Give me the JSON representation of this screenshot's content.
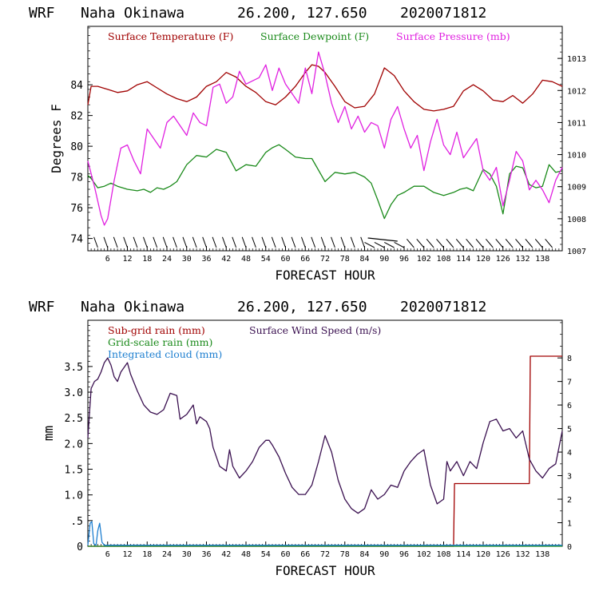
{
  "chart_data": [
    {
      "type": "line",
      "header": {
        "model": "WRF",
        "location": "Naha Okinawa",
        "coords": "26.200, 127.650",
        "init": "2020071812"
      },
      "xlabel": "FORECAST HOUR",
      "ylabel": "Degrees F",
      "x_ticks": [
        "6",
        "12",
        "18",
        "24",
        "30",
        "36",
        "42",
        "48",
        "54",
        "60",
        "66",
        "72",
        "78",
        "84",
        "90",
        "96",
        "102",
        "108",
        "114",
        "120",
        "126",
        "132",
        "138"
      ],
      "xlim": [
        0,
        144
      ],
      "ylim_left": [
        73.2,
        87.8
      ],
      "left_ticks": [
        "74",
        "76",
        "78",
        "80",
        "82",
        "84"
      ],
      "left_tick_values": [
        74,
        76,
        78,
        80,
        82,
        84
      ],
      "ylim_right": [
        1007,
        1014
      ],
      "right_ticks": [
        "1007",
        "1008",
        "1009",
        "1010",
        "1011",
        "1012",
        "1013"
      ],
      "right_tick_values": [
        1007,
        1008,
        1009,
        1010,
        1011,
        1012,
        1013
      ],
      "wind_barbs": true,
      "series": [
        {
          "name": "Surface Temperature (F)",
          "axis": "left",
          "color": "#a00000",
          "x": [
            0,
            1,
            3,
            6,
            9,
            12,
            15,
            18,
            21,
            24,
            27,
            30,
            33,
            36,
            39,
            42,
            45,
            48,
            51,
            54,
            57,
            60,
            63,
            66,
            68,
            70,
            72,
            75,
            78,
            81,
            84,
            87,
            90,
            93,
            96,
            99,
            102,
            105,
            108,
            111,
            114,
            117,
            120,
            123,
            126,
            129,
            132,
            135,
            138,
            141,
            144
          ],
          "values": [
            82.7,
            83.9,
            83.9,
            83.7,
            83.5,
            83.6,
            84.0,
            84.2,
            83.8,
            83.4,
            83.1,
            82.9,
            83.2,
            83.9,
            84.2,
            84.8,
            84.5,
            83.9,
            83.5,
            82.9,
            82.7,
            83.2,
            83.9,
            84.8,
            85.3,
            85.2,
            84.8,
            83.9,
            82.9,
            82.5,
            82.6,
            83.4,
            85.1,
            84.6,
            83.6,
            82.9,
            82.4,
            82.3,
            82.4,
            82.6,
            83.6,
            84.0,
            83.6,
            83.0,
            82.9,
            83.3,
            82.8,
            83.4,
            84.3,
            84.2,
            83.9
          ]
        },
        {
          "name": "Surface Dewpoint (F)",
          "axis": "left",
          "color": "#1a8a1a",
          "x": [
            0,
            1,
            3,
            5,
            7,
            9,
            12,
            15,
            17,
            19,
            21,
            23,
            25,
            27,
            30,
            33,
            36,
            39,
            42,
            45,
            48,
            51,
            54,
            56,
            58,
            60,
            63,
            66,
            68,
            72,
            75,
            78,
            81,
            84,
            86,
            88,
            90,
            92,
            94,
            96,
            99,
            102,
            105,
            108,
            111,
            113,
            115,
            117,
            120,
            122,
            124,
            126,
            128,
            130,
            132,
            134,
            136,
            138,
            140,
            142,
            144
          ],
          "values": [
            78.1,
            77.9,
            77.3,
            77.4,
            77.6,
            77.4,
            77.2,
            77.1,
            77.2,
            77.0,
            77.3,
            77.2,
            77.4,
            77.7,
            78.8,
            79.4,
            79.3,
            79.8,
            79.6,
            78.4,
            78.8,
            78.7,
            79.6,
            79.9,
            80.1,
            79.8,
            79.3,
            79.2,
            79.2,
            77.7,
            78.3,
            78.2,
            78.3,
            78.0,
            77.6,
            76.5,
            75.3,
            76.2,
            76.8,
            77.0,
            77.4,
            77.4,
            77.0,
            76.8,
            77.0,
            77.2,
            77.3,
            77.1,
            78.5,
            78.2,
            77.4,
            75.6,
            78.2,
            78.7,
            78.6,
            77.5,
            77.3,
            77.4,
            78.8,
            78.3,
            78.4
          ]
        },
        {
          "name": "Surface Pressure (mb)",
          "axis": "right",
          "color": "#e020e0",
          "x": [
            0,
            2,
            4,
            5,
            6,
            8,
            10,
            12,
            14,
            16,
            18,
            20,
            22,
            24,
            26,
            28,
            30,
            32,
            34,
            36,
            38,
            40,
            42,
            44,
            46,
            48,
            50,
            52,
            54,
            56,
            58,
            60,
            62,
            64,
            66,
            68,
            70,
            72,
            74,
            76,
            78,
            80,
            82,
            84,
            86,
            88,
            90,
            92,
            94,
            96,
            98,
            100,
            102,
            104,
            106,
            108,
            110,
            112,
            114,
            116,
            118,
            120,
            122,
            124,
            126,
            128,
            130,
            132,
            134,
            136,
            138,
            140,
            142,
            144
          ],
          "values": [
            1009.8,
            1009.0,
            1008.1,
            1007.8,
            1008.0,
            1009.2,
            1010.2,
            1010.3,
            1009.8,
            1009.4,
            1010.8,
            1010.5,
            1010.2,
            1011.0,
            1011.2,
            1010.9,
            1010.6,
            1011.3,
            1011.0,
            1010.9,
            1012.1,
            1012.2,
            1011.6,
            1011.8,
            1012.6,
            1012.2,
            1012.3,
            1012.4,
            1012.8,
            1012.0,
            1012.7,
            1012.2,
            1011.9,
            1011.6,
            1012.7,
            1011.9,
            1013.2,
            1012.5,
            1011.6,
            1011.0,
            1011.5,
            1010.8,
            1011.2,
            1010.7,
            1011.0,
            1010.9,
            1010.2,
            1011.1,
            1011.5,
            1010.8,
            1010.2,
            1010.6,
            1009.5,
            1010.4,
            1011.1,
            1010.3,
            1010.0,
            1010.7,
            1009.9,
            1010.2,
            1010.5,
            1009.5,
            1009.2,
            1009.6,
            1008.4,
            1009.2,
            1010.1,
            1009.8,
            1008.9,
            1009.2,
            1008.9,
            1008.5,
            1009.2,
            1009.6
          ]
        }
      ]
    },
    {
      "type": "line",
      "header": {
        "model": "WRF",
        "location": "Naha Okinawa",
        "coords": "26.200, 127.650",
        "init": "2020071812"
      },
      "xlabel": "FORECAST HOUR",
      "ylabel": "mm",
      "x_ticks": [
        "6",
        "12",
        "18",
        "24",
        "30",
        "36",
        "42",
        "48",
        "54",
        "60",
        "66",
        "72",
        "78",
        "84",
        "90",
        "96",
        "102",
        "108",
        "114",
        "120",
        "126",
        "132",
        "138"
      ],
      "xlim": [
        0,
        144
      ],
      "ylim_left": [
        0,
        4.4
      ],
      "left_ticks": [
        "0",
        ".5",
        "1.0",
        "1.5",
        "2.0",
        "2.5",
        "3.0",
        "3.5"
      ],
      "left_tick_values": [
        0,
        0.5,
        1.0,
        1.5,
        2.0,
        2.5,
        3.0,
        3.5
      ],
      "ylim_right": [
        0,
        9.6
      ],
      "right_ticks": [
        "0",
        "1",
        "2",
        "3",
        "4",
        "5",
        "6",
        "7",
        "8"
      ],
      "right_tick_values": [
        0,
        1,
        2,
        3,
        4,
        5,
        6,
        7,
        8
      ],
      "series": [
        {
          "name": "Sub-grid rain (mm)",
          "axis": "left",
          "color": "#a00000",
          "step": true,
          "x": [
            0,
            111,
            111.3,
            134,
            134.3,
            144
          ],
          "values": [
            0,
            0,
            1.22,
            1.22,
            3.7,
            3.7
          ]
        },
        {
          "name": "Grid-scale rain (mm)",
          "axis": "left",
          "color": "#1a8a1a",
          "x": [
            0,
            144
          ],
          "values": [
            0,
            0
          ]
        },
        {
          "name": "Integrated cloud (mm)",
          "axis": "left",
          "color": "#1e7fd0",
          "x": [
            0,
            0.7,
            1.2,
            1.8,
            2.5,
            3,
            3.6,
            4.3,
            5,
            144
          ],
          "values": [
            0.02,
            0.45,
            0.48,
            0.05,
            0.02,
            0.3,
            0.45,
            0.08,
            0.02,
            0.02
          ]
        },
        {
          "name": "Surface Wind Speed (m/s)",
          "axis": "right",
          "color": "#3a1050",
          "x": [
            0,
            1,
            2,
            3,
            4,
            5,
            6,
            7,
            8,
            9,
            10,
            11,
            12,
            13,
            15,
            17,
            19,
            21,
            23,
            25,
            27,
            28,
            30,
            32,
            33,
            34,
            36,
            37,
            38,
            40,
            42,
            43,
            44,
            46,
            48,
            50,
            52,
            54,
            55,
            56,
            58,
            60,
            62,
            64,
            66,
            68,
            70,
            72,
            74,
            76,
            78,
            80,
            82,
            84,
            86,
            88,
            90,
            92,
            94,
            96,
            98,
            100,
            102,
            104,
            106,
            108,
            109,
            110,
            112,
            114,
            116,
            118,
            120,
            122,
            124,
            126,
            128,
            130,
            132,
            134,
            136,
            138,
            140,
            142,
            144
          ],
          "values": [
            4.6,
            6.7,
            7.0,
            7.1,
            7.4,
            7.8,
            8.0,
            7.7,
            7.2,
            7.0,
            7.4,
            7.6,
            7.8,
            7.3,
            6.6,
            6.0,
            5.7,
            5.6,
            5.8,
            6.5,
            6.4,
            5.4,
            5.6,
            6.0,
            5.2,
            5.5,
            5.3,
            5.0,
            4.2,
            3.4,
            3.2,
            4.1,
            3.4,
            2.9,
            3.2,
            3.6,
            4.2,
            4.5,
            4.5,
            4.3,
            3.8,
            3.1,
            2.5,
            2.2,
            2.2,
            2.6,
            3.6,
            4.7,
            4.0,
            2.8,
            2.0,
            1.6,
            1.4,
            1.6,
            2.4,
            2.0,
            2.2,
            2.6,
            2.5,
            3.2,
            3.6,
            3.9,
            4.1,
            2.6,
            1.8,
            2.0,
            3.6,
            3.2,
            3.6,
            3.0,
            3.6,
            3.3,
            4.4,
            5.3,
            5.4,
            4.9,
            5.0,
            4.6,
            4.9,
            3.7,
            3.2,
            2.9,
            3.3,
            3.5,
            4.9
          ]
        }
      ]
    }
  ]
}
